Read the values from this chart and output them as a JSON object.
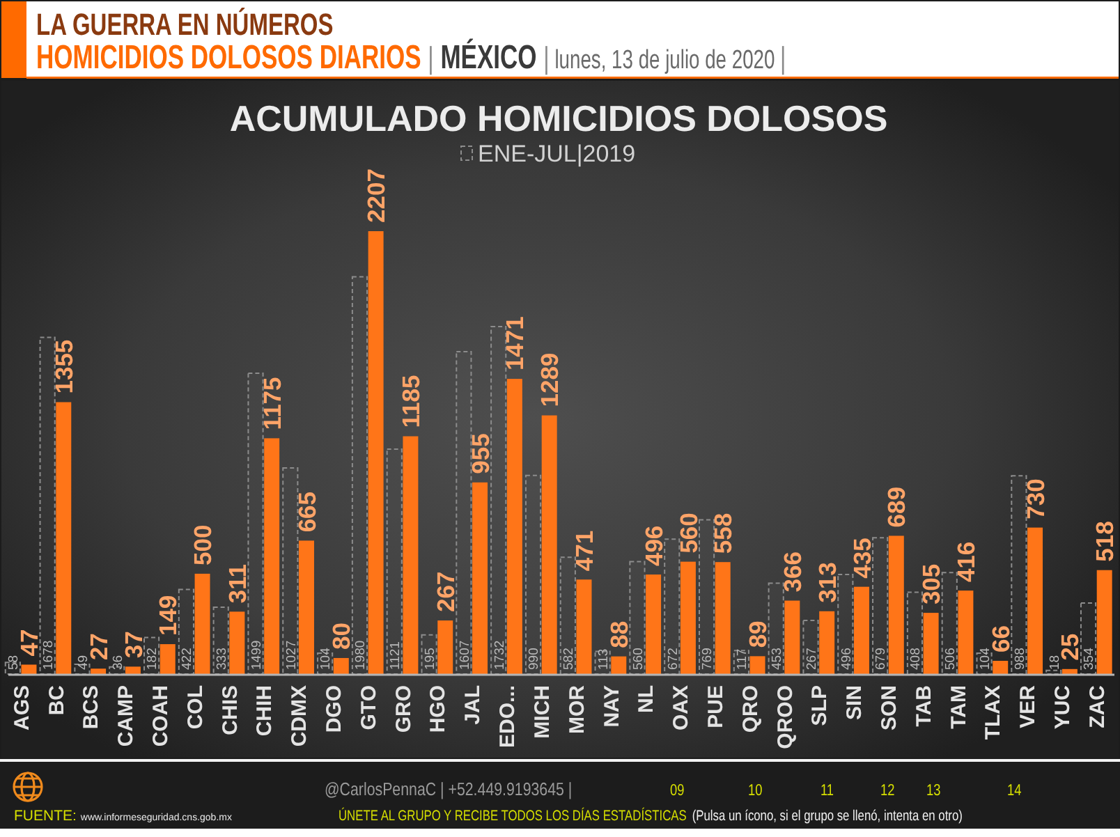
{
  "chart_data": {
    "type": "bar",
    "title": "ACUMULADO HOMICIDIOS DOLOSOS",
    "categories": [
      "AGS",
      "BC",
      "BCS",
      "CAMP",
      "COAH",
      "COL",
      "CHIS",
      "CHIH",
      "CDMX",
      "DGO",
      "GTO",
      "GRO",
      "HGO",
      "JAL",
      "EDO...",
      "MICH",
      "MOR",
      "NAY",
      "NL",
      "OAX",
      "PUE",
      "QRO",
      "QROO",
      "SLP",
      "SIN",
      "SON",
      "TAB",
      "TAM",
      "TLAX",
      "VER",
      "YUC",
      "ZAC"
    ],
    "series": [
      {
        "name": "ENE-JUL|2019",
        "color": "#8c8c8c",
        "line_style": "dashed",
        "values": [
          58,
          1678,
          49,
          36,
          182,
          422,
          333,
          1499,
          1027,
          104,
          1980,
          1121,
          195,
          1607,
          1732,
          990,
          582,
          113,
          560,
          672,
          769,
          117,
          453,
          267,
          496,
          679,
          408,
          506,
          104,
          988,
          18,
          354
        ]
      },
      {
        "color": "#ff7518",
        "values": [
          47,
          1355,
          27,
          37,
          149,
          500,
          311,
          1175,
          665,
          80,
          2207,
          1185,
          267,
          955,
          1471,
          1289,
          471,
          88,
          496,
          560,
          558,
          89,
          366,
          313,
          435,
          689,
          305,
          416,
          66,
          730,
          25,
          518
        ]
      }
    ],
    "data_labels": true,
    "legend": "top",
    "annotations": [
      "LA GUERRA EN NÚMEROS",
      "HOMICIDIOS DOLOSOS DIARIOS | MÉXICO | lunes, 13 de julio de 2020 |",
      "@CarlosPennaC | +52.449.9193645 |",
      "09",
      "10",
      "11",
      "12",
      "13",
      "14",
      "FUENTE: www.informeseguridad.cns.gob.mx",
      "ÚNETE AL GRUPO Y RECIBE TODOS LOS DÍAS ESTADÍSTICAS",
      "(Pulsa un ícono, si el grupo se llenó, intenta en otro)"
    ]
  }
}
